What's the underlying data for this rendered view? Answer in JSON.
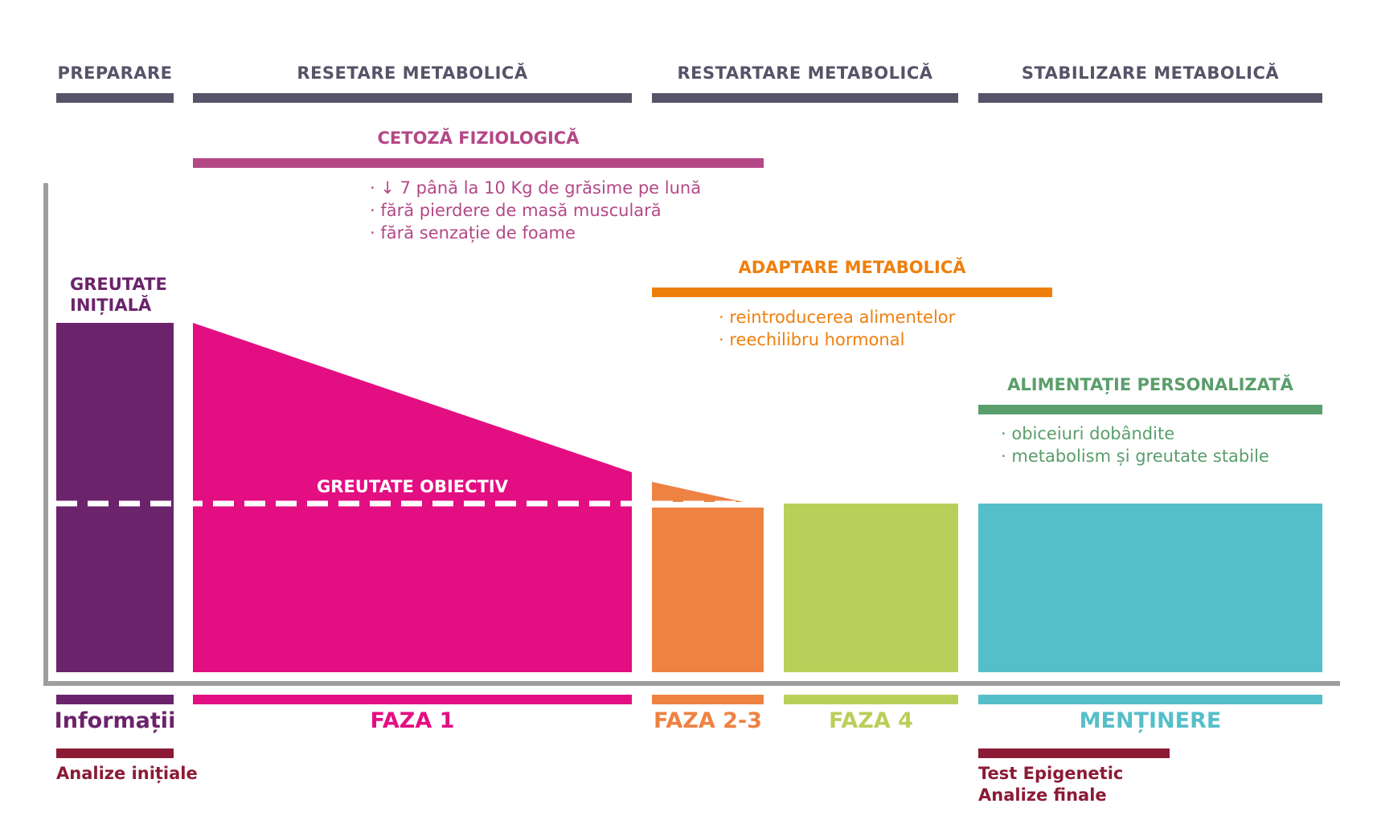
{
  "stages": {
    "preparare": "PREPARARE",
    "resetare": "RESETARE METABOLICĂ",
    "restartare": "RESTARTARE METABOLICĂ",
    "stabilizare": "STABILIZARE METABOLICĂ"
  },
  "cetoza": {
    "title": "CETOZĂ FIZIOLOGICĂ",
    "items": [
      "↓ 7 până la 10 Kg de grăsime pe lună",
      "fără pierdere de masă musculară",
      "fără senzație de foame"
    ]
  },
  "adaptare": {
    "title": "ADAPTARE METABOLICĂ",
    "items": [
      "reintroducerea alimentelor",
      "reechilibru hormonal"
    ]
  },
  "alimentatie": {
    "title": "ALIMENTAȚIE PERSONALIZATĂ",
    "items": [
      "obiceiuri dobândite",
      "metabolism și greutate stabile"
    ]
  },
  "greutate_initiala": "GREUTATE INIȚIALĂ",
  "greutate_obiectiv": "GREUTATE OBIECTIV",
  "phases": {
    "informatii": "Informații",
    "faza1": "FAZA 1",
    "faza23": "FAZA 2-3",
    "faza4": "FAZA 4",
    "mentinere": "MENȚINERE"
  },
  "notes": {
    "analize_initiale": "Analize inițiale",
    "test_epigenetic": "Test Epigenetic",
    "analize_finale": "Analize finale"
  },
  "colors": {
    "stage_bar": "#575368",
    "purple": "#6b236b",
    "magenta": "#e30e82",
    "cetoza": "#b44887",
    "orange_bar": "#ef7f0d",
    "orange_block": "#ee8242",
    "lime": "#b9cf5a",
    "teal": "#55bfc9",
    "green": "#5a9e6b",
    "dark_red": "#8c1a34",
    "axis": "#9e9e9e"
  }
}
